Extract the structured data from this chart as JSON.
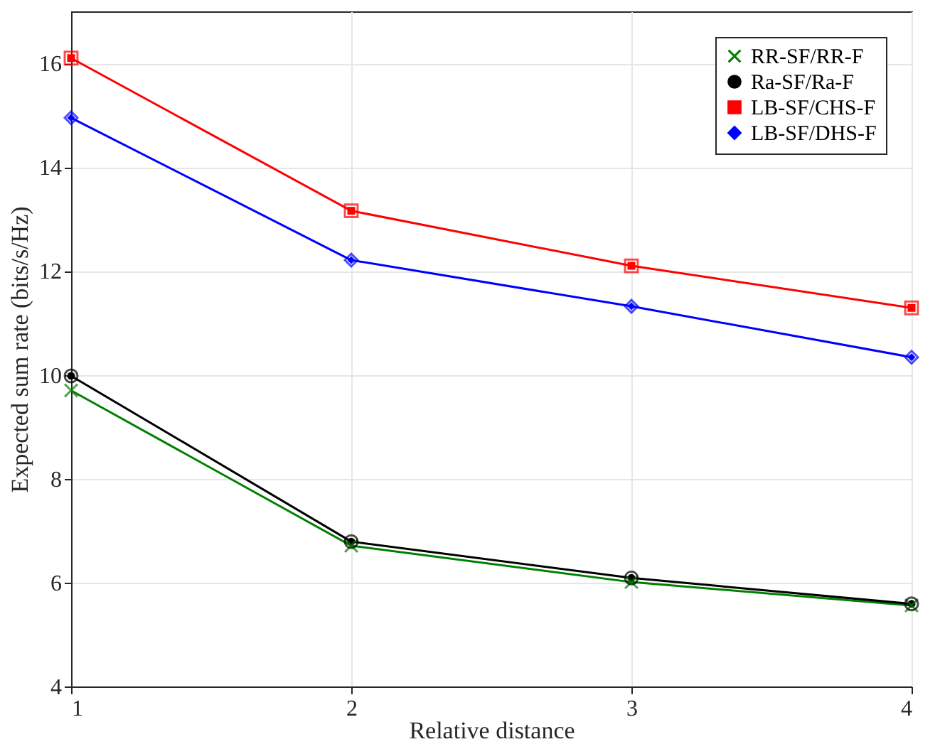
{
  "chart_data": {
    "type": "line",
    "xlabel": "Relative distance",
    "ylabel": "Expected sum rate (bits/s/Hz)",
    "x": [
      1,
      2,
      3,
      4
    ],
    "xlim": [
      1,
      4
    ],
    "xticks": [
      1,
      2,
      3,
      4
    ],
    "ylim": [
      4,
      17
    ],
    "yticks": [
      4,
      6,
      8,
      10,
      12,
      14,
      16
    ],
    "grid": true,
    "legend": "top right",
    "line_style": "solid",
    "series": [
      {
        "name": "RR-SF/RR-F",
        "color": "#008000",
        "marker": "cross",
        "values": [
          9.7,
          6.71,
          6.01,
          5.56
        ]
      },
      {
        "name": "Ra-SF/Ra-F",
        "color": "#000000",
        "marker": "circle",
        "values": [
          9.98,
          6.79,
          6.09,
          5.59
        ]
      },
      {
        "name": "LB-SF/CHS-F",
        "color": "#ff0000",
        "marker": "square",
        "values": [
          16.1,
          13.16,
          12.1,
          11.29
        ]
      },
      {
        "name": "LB-SF/DHS-F",
        "color": "#0000ff",
        "marker": "diamond",
        "values": [
          14.95,
          12.21,
          11.32,
          10.34
        ]
      }
    ]
  }
}
